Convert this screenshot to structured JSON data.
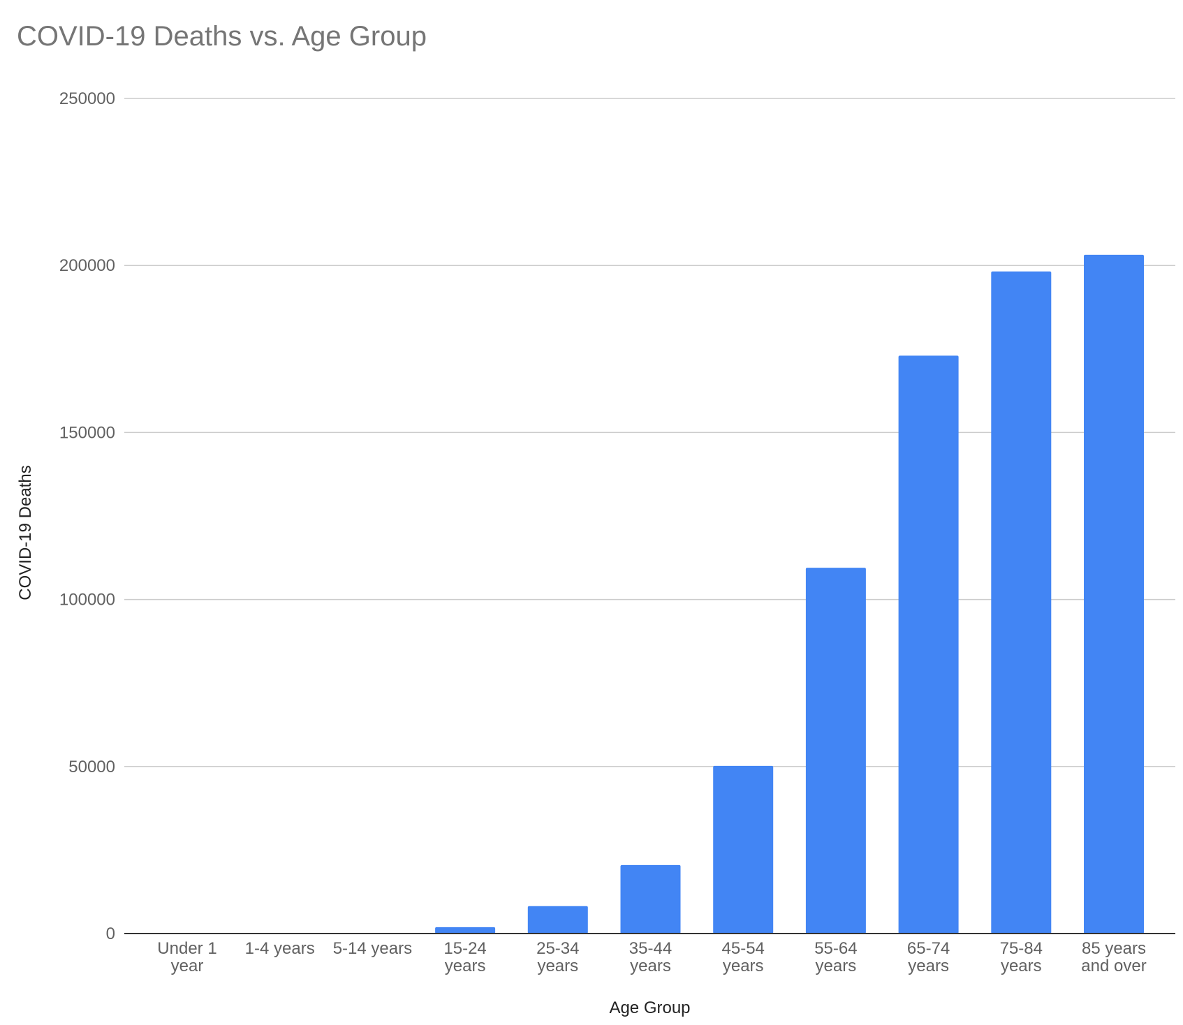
{
  "chart_data": {
    "type": "bar",
    "title": "COVID-19 Deaths vs. Age Group",
    "xlabel": "Age Group",
    "ylabel": "COVID-19 Deaths",
    "ylim": [
      0,
      250000
    ],
    "yticks": [
      "0",
      "50000",
      "100000",
      "150000",
      "200000",
      "250000"
    ],
    "categories": [
      [
        "Under 1",
        "year"
      ],
      [
        "1-4 years"
      ],
      [
        "5-14 years"
      ],
      [
        "15-24",
        "years"
      ],
      [
        "25-34",
        "years"
      ],
      [
        "35-44",
        "years"
      ],
      [
        "45-54",
        "years"
      ],
      [
        "55-64",
        "years"
      ],
      [
        "65-74",
        "years"
      ],
      [
        "75-84",
        "years"
      ],
      [
        "85 years",
        "and over"
      ]
    ],
    "values": [
      60,
      60,
      150,
      1900,
      8200,
      20500,
      50200,
      109500,
      173000,
      198200,
      203200
    ],
    "bar_color": "#4285F4",
    "grid": true,
    "legend": "none"
  }
}
